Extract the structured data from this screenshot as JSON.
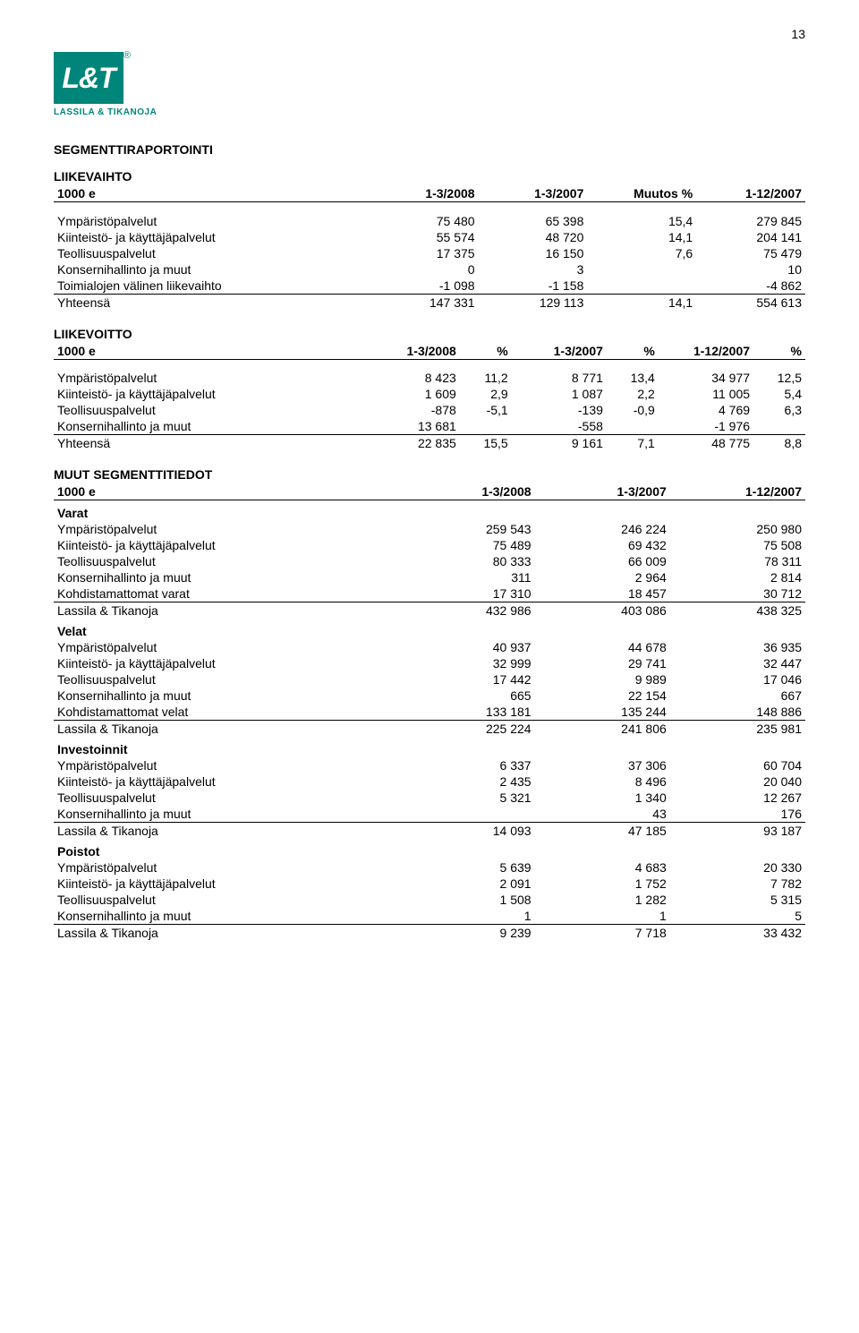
{
  "page_number": "13",
  "logo": {
    "mark": "L&T",
    "reg": "®",
    "sub": "LASSILA & TIKANOJA",
    "bg_color": "#00857a",
    "fg_color": "#ffffff"
  },
  "headings": {
    "main": "SEGMENTTIRAPORTOINTI",
    "liikevaihto": "LIIKEVAIHTO",
    "liikevoitto": "LIIKEVOITTO",
    "muut": "MUUT SEGMENTTITIEDOT"
  },
  "liikevaihto": {
    "head": {
      "unit": "1000 e",
      "c1": "1-3/2008",
      "c2": "1-3/2007",
      "c3": "Muutos %",
      "c4": "1-12/2007"
    },
    "rows": [
      {
        "label": "Ympäristöpalvelut",
        "v": [
          "75 480",
          "65 398",
          "15,4",
          "279 845"
        ]
      },
      {
        "label": "Kiinteistö- ja käyttäjäpalvelut",
        "v": [
          "55 574",
          "48 720",
          "14,1",
          "204 141"
        ]
      },
      {
        "label": "Teollisuuspalvelut",
        "v": [
          "17 375",
          "16 150",
          "7,6",
          "75 479"
        ]
      },
      {
        "label": "Konsernihallinto ja muut",
        "v": [
          "0",
          "3",
          "",
          "10"
        ]
      },
      {
        "label": "Toimialojen välinen liikevaihto",
        "v": [
          "-1 098",
          "-1 158",
          "",
          "-4 862"
        ]
      }
    ],
    "total": {
      "label": "Yhteensä",
      "v": [
        "147 331",
        "129 113",
        "14,1",
        "554 613"
      ]
    }
  },
  "liikevoitto": {
    "head": {
      "unit": "1000 e",
      "c1": "1-3/2008",
      "p1": "%",
      "c2": "1-3/2007",
      "p2": "%",
      "c3": "1-12/2007",
      "p3": "%"
    },
    "rows": [
      {
        "label": "Ympäristöpalvelut",
        "v": [
          "8 423",
          "11,2",
          "8 771",
          "13,4",
          "34 977",
          "12,5"
        ]
      },
      {
        "label": "Kiinteistö- ja käyttäjäpalvelut",
        "v": [
          "1 609",
          "2,9",
          "1 087",
          "2,2",
          "11 005",
          "5,4"
        ]
      },
      {
        "label": "Teollisuuspalvelut",
        "v": [
          "-878",
          "-5,1",
          "-139",
          "-0,9",
          "4 769",
          "6,3"
        ]
      },
      {
        "label": "Konsernihallinto ja muut",
        "v": [
          "13 681",
          "",
          "-558",
          "",
          "-1 976",
          ""
        ]
      }
    ],
    "total": {
      "label": "Yhteensä",
      "v": [
        "22 835",
        "15,5",
        "9 161",
        "7,1",
        "48 775",
        "8,8"
      ]
    }
  },
  "muut": {
    "head": {
      "unit": "1000 e",
      "c1": "1-3/2008",
      "c2": "1-3/2007",
      "c3": "1-12/2007"
    },
    "groups": [
      {
        "title": "Varat",
        "rows": [
          {
            "label": "Ympäristöpalvelut",
            "v": [
              "259 543",
              "246 224",
              "250 980"
            ]
          },
          {
            "label": "Kiinteistö- ja käyttäjäpalvelut",
            "v": [
              "75 489",
              "69 432",
              "75 508"
            ]
          },
          {
            "label": "Teollisuuspalvelut",
            "v": [
              "80 333",
              "66 009",
              "78 311"
            ]
          },
          {
            "label": "Konsernihallinto ja muut",
            "v": [
              "311",
              "2 964",
              "2 814"
            ]
          },
          {
            "label": "Kohdistamattomat varat",
            "v": [
              "17 310",
              "18 457",
              "30 712"
            ]
          }
        ],
        "total": {
          "label": "Lassila & Tikanoja",
          "v": [
            "432 986",
            "403 086",
            "438 325"
          ]
        }
      },
      {
        "title": "Velat",
        "rows": [
          {
            "label": "Ympäristöpalvelut",
            "v": [
              "40 937",
              "44 678",
              "36 935"
            ]
          },
          {
            "label": "Kiinteistö- ja käyttäjäpalvelut",
            "v": [
              "32 999",
              "29 741",
              "32 447"
            ]
          },
          {
            "label": "Teollisuuspalvelut",
            "v": [
              "17 442",
              "9 989",
              "17 046"
            ]
          },
          {
            "label": "Konsernihallinto ja muut",
            "v": [
              "665",
              "22 154",
              "667"
            ]
          },
          {
            "label": "Kohdistamattomat velat",
            "v": [
              "133 181",
              "135 244",
              "148 886"
            ]
          }
        ],
        "total": {
          "label": "Lassila & Tikanoja",
          "v": [
            "225 224",
            "241 806",
            "235 981"
          ]
        }
      },
      {
        "title": "Investoinnit",
        "rows": [
          {
            "label": "Ympäristöpalvelut",
            "v": [
              "6 337",
              "37 306",
              "60 704"
            ]
          },
          {
            "label": "Kiinteistö- ja käyttäjäpalvelut",
            "v": [
              "2 435",
              "8 496",
              "20 040"
            ]
          },
          {
            "label": "Teollisuuspalvelut",
            "v": [
              "5 321",
              "1 340",
              "12 267"
            ]
          },
          {
            "label": "Konsernihallinto ja muut",
            "v": [
              "",
              "43",
              "176"
            ]
          }
        ],
        "total": {
          "label": "Lassila & Tikanoja",
          "v": [
            "14 093",
            "47 185",
            "93 187"
          ]
        }
      },
      {
        "title": "Poistot",
        "rows": [
          {
            "label": "Ympäristöpalvelut",
            "v": [
              "5 639",
              "4 683",
              "20 330"
            ]
          },
          {
            "label": "Kiinteistö- ja käyttäjäpalvelut",
            "v": [
              "2 091",
              "1 752",
              "7 782"
            ]
          },
          {
            "label": "Teollisuuspalvelut",
            "v": [
              "1 508",
              "1 282",
              "5 315"
            ]
          },
          {
            "label": "Konsernihallinto ja muut",
            "v": [
              "1",
              "1",
              "5"
            ]
          }
        ],
        "total": {
          "label": "Lassila & Tikanoja",
          "v": [
            "9 239",
            "7 718",
            "33 432"
          ]
        }
      }
    ]
  }
}
